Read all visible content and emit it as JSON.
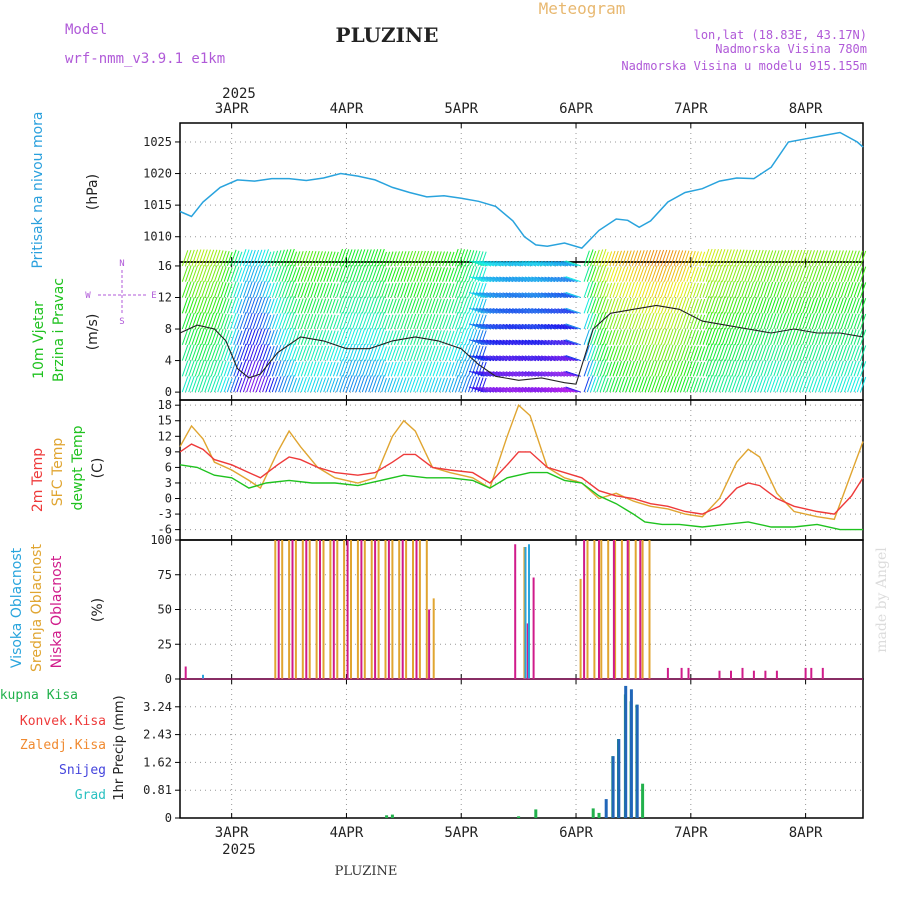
{
  "header": {
    "model_label": "Model",
    "model_name": "wrf-nmm_v3.9.1 e1km",
    "station": "PLUZINE",
    "title": "Meteogram",
    "lonlat": "lon,lat (18.83E, 43.17N)",
    "elevation": "Nadmorska Visina 780m",
    "model_elevation": "Nadmorska Visina u modelu 915.155m",
    "footer_station": "PLUZINE",
    "watermark": "made by Angel"
  },
  "colors": {
    "pressure": "#29a3dd",
    "t2m": "#ee3a3a",
    "sfc": "#e0a531",
    "dewpt": "#1fc21f",
    "high_cloud": "#2aa5dd",
    "mid_cloud": "#e0a531",
    "low_cloud": "#d01b8a",
    "precip_total": "#22b14c",
    "precip_conv": "#ee3a3a",
    "precip_snow": "#4444dd",
    "precip_grad": "#2ac1c1",
    "labels": "#2aa0dd",
    "model_text": "#b05ad8"
  },
  "time_axis": {
    "year": "2025",
    "days": [
      "3APR",
      "4APR",
      "5APR",
      "6APR",
      "7APR",
      "8APR"
    ],
    "start_day": 2.55,
    "end_day": 8.5
  },
  "panels": {
    "pressure": {
      "label": "Pritisak na nivou mora",
      "unit": "(hPa)"
    },
    "wind": {
      "label1": "10m Vjetar",
      "label2": "Brzina i Pravac",
      "unit": "(m/s)",
      "compass_top": "N",
      "compass_left": "W",
      "compass_right": "E",
      "compass_bottom": "S"
    },
    "temp": {
      "label1": "2m Temp",
      "label2": "SFC Temp",
      "label3": "dewpt Temp",
      "unit": "(C)"
    },
    "cloud": {
      "label1": "Visoka Oblacnost",
      "label2": "Srednja Oblacnost",
      "label3": "Niska Oblacnost",
      "unit": "(%)"
    },
    "precip": {
      "unit_label": "1hr Precip (mm)",
      "legend": [
        "Ukupna Kisa",
        "Konvek.Kisa",
        "Zaledj.Kisa",
        "Snijeg",
        "Grad"
      ]
    }
  },
  "chart_data": [
    {
      "type": "line",
      "title": "Pritisak na nivou mora",
      "ylabel": "(hPa)",
      "ylim": [
        1006,
        1028
      ],
      "yticks": [
        1010,
        1015,
        1020,
        1025
      ],
      "series": [
        {
          "name": "Pritisak na nivou mora",
          "x": [
            2.55,
            2.65,
            2.75,
            2.9,
            3.05,
            3.2,
            3.35,
            3.5,
            3.65,
            3.8,
            3.95,
            4.1,
            4.25,
            4.4,
            4.55,
            4.7,
            4.85,
            5.0,
            5.15,
            5.3,
            5.45,
            5.55,
            5.65,
            5.75,
            5.9,
            6.05,
            6.2,
            6.35,
            6.45,
            6.55,
            6.65,
            6.8,
            6.95,
            7.1,
            7.25,
            7.4,
            7.55,
            7.7,
            7.85,
            8.0,
            8.15,
            8.3,
            8.45,
            8.5
          ],
          "y": [
            1014.0,
            1013.2,
            1015.5,
            1017.8,
            1019.0,
            1018.8,
            1019.2,
            1019.2,
            1018.9,
            1019.3,
            1020.0,
            1019.6,
            1019.0,
            1017.8,
            1017.0,
            1016.3,
            1016.5,
            1016.1,
            1015.6,
            1014.8,
            1012.5,
            1010.0,
            1008.7,
            1008.5,
            1009.0,
            1008.2,
            1011.0,
            1012.8,
            1012.6,
            1011.5,
            1012.5,
            1015.5,
            1017.0,
            1017.6,
            1018.8,
            1019.3,
            1019.2,
            1021.0,
            1025.0,
            1025.5,
            1026.0,
            1026.5,
            1025.0,
            1024.2
          ]
        }
      ]
    },
    {
      "type": "line",
      "title": "10m Vjetar Brzina i Pravac",
      "ylabel": "(m/s)",
      "ylim": [
        -1,
        16.5
      ],
      "yticks": [
        0,
        4,
        8,
        12,
        16
      ],
      "series": [
        {
          "name": "10m Vjetar",
          "x": [
            2.55,
            2.7,
            2.85,
            2.95,
            3.05,
            3.15,
            3.25,
            3.4,
            3.6,
            3.8,
            4.0,
            4.2,
            4.4,
            4.6,
            4.8,
            5.0,
            5.15,
            5.3,
            5.5,
            5.7,
            5.9,
            6.0,
            6.15,
            6.3,
            6.5,
            6.7,
            6.9,
            7.1,
            7.3,
            7.5,
            7.7,
            7.9,
            8.1,
            8.3,
            8.5
          ],
          "y": [
            7.5,
            8.5,
            8.0,
            6.5,
            3.0,
            1.8,
            2.3,
            5.0,
            7.0,
            6.5,
            5.5,
            5.5,
            6.5,
            7.0,
            6.5,
            5.5,
            3.5,
            2.0,
            1.5,
            1.8,
            1.2,
            1.0,
            8.0,
            10.0,
            10.5,
            11.0,
            10.5,
            9.0,
            8.5,
            8.0,
            7.5,
            8.0,
            7.5,
            7.5,
            7.0
          ]
        }
      ]
    },
    {
      "type": "line",
      "title": "2m Temp / SFC Temp / dewpt Temp",
      "ylabel": "(C)",
      "ylim": [
        -8,
        19
      ],
      "yticks": [
        -6,
        -3,
        0,
        3,
        6,
        9,
        12,
        15,
        18
      ],
      "series": [
        {
          "name": "2m Temp",
          "x": [
            2.55,
            2.65,
            2.75,
            2.85,
            3.0,
            3.15,
            3.25,
            3.4,
            3.5,
            3.6,
            3.75,
            3.9,
            4.1,
            4.25,
            4.4,
            4.5,
            4.6,
            4.75,
            4.9,
            5.1,
            5.25,
            5.4,
            5.5,
            5.6,
            5.75,
            5.9,
            6.05,
            6.2,
            6.35,
            6.5,
            6.65,
            6.8,
            6.95,
            7.1,
            7.25,
            7.4,
            7.5,
            7.6,
            7.75,
            7.9,
            8.1,
            8.25,
            8.4,
            8.5
          ],
          "y": [
            9.0,
            10.5,
            9.5,
            7.5,
            6.5,
            5.0,
            4.0,
            6.5,
            8.0,
            7.5,
            6.0,
            5.0,
            4.5,
            5.0,
            7.0,
            8.5,
            8.5,
            6.0,
            5.5,
            5.0,
            3.0,
            6.5,
            9.0,
            9.0,
            6.0,
            5.0,
            4.0,
            1.5,
            0.5,
            0.0,
            -1.0,
            -1.5,
            -2.5,
            -3.0,
            -1.5,
            2.0,
            3.0,
            2.5,
            0.0,
            -1.5,
            -2.5,
            -3.0,
            0.5,
            4.0
          ]
        },
        {
          "name": "SFC Temp",
          "x": [
            2.55,
            2.65,
            2.75,
            2.85,
            3.0,
            3.15,
            3.25,
            3.4,
            3.5,
            3.6,
            3.75,
            3.9,
            4.1,
            4.25,
            4.4,
            4.5,
            4.6,
            4.75,
            4.9,
            5.1,
            5.25,
            5.4,
            5.5,
            5.6,
            5.75,
            5.9,
            6.05,
            6.2,
            6.35,
            6.5,
            6.65,
            6.8,
            6.95,
            7.1,
            7.25,
            7.4,
            7.5,
            7.6,
            7.75,
            7.9,
            8.1,
            8.25,
            8.4,
            8.5
          ],
          "y": [
            10.0,
            14.0,
            11.5,
            7.0,
            5.5,
            3.5,
            2.0,
            9.0,
            13.0,
            10.0,
            6.0,
            4.0,
            3.0,
            4.0,
            12.0,
            15.0,
            13.0,
            6.0,
            5.0,
            4.0,
            2.0,
            12.0,
            18.0,
            16.0,
            6.0,
            4.0,
            3.0,
            0.0,
            1.0,
            -0.5,
            -1.5,
            -2.0,
            -3.0,
            -3.5,
            0.0,
            7.0,
            9.5,
            8.0,
            1.0,
            -2.5,
            -3.5,
            -4.0,
            5.0,
            11.0
          ]
        },
        {
          "name": "dewpt Temp",
          "x": [
            2.55,
            2.7,
            2.85,
            3.0,
            3.15,
            3.3,
            3.5,
            3.7,
            3.9,
            4.1,
            4.3,
            4.5,
            4.7,
            4.9,
            5.1,
            5.25,
            5.4,
            5.5,
            5.6,
            5.75,
            5.9,
            6.05,
            6.2,
            6.35,
            6.5,
            6.6,
            6.75,
            6.9,
            7.1,
            7.3,
            7.5,
            7.7,
            7.9,
            8.1,
            8.3,
            8.5
          ],
          "y": [
            6.5,
            6.0,
            4.5,
            4.0,
            2.0,
            3.0,
            3.5,
            3.0,
            3.0,
            2.5,
            3.5,
            4.5,
            4.0,
            4.0,
            3.5,
            2.0,
            4.0,
            4.5,
            5.0,
            5.0,
            3.5,
            3.0,
            0.5,
            -1.0,
            -3.0,
            -4.5,
            -5.0,
            -5.0,
            -5.5,
            -5.0,
            -4.5,
            -5.5,
            -5.5,
            -5.0,
            -6.0,
            -6.0
          ]
        }
      ]
    },
    {
      "type": "bar",
      "title": "Visoka / Srednja / Niska Oblacnost",
      "ylabel": "(%)",
      "ylim": [
        0,
        100
      ],
      "yticks": [
        0,
        25,
        50,
        75,
        100
      ],
      "series": [
        {
          "name": "Srednja Oblacnost",
          "x": [
            3.38,
            3.44,
            3.5,
            3.56,
            3.62,
            3.68,
            3.74,
            3.8,
            3.86,
            3.92,
            3.98,
            4.04,
            4.1,
            4.16,
            4.22,
            4.28,
            4.34,
            4.4,
            4.46,
            4.52,
            4.58,
            4.64,
            4.7,
            4.76,
            5.55,
            6.04,
            6.1,
            6.16,
            6.22,
            6.28,
            6.34,
            6.4,
            6.46,
            6.52,
            6.58,
            6.64
          ],
          "y": [
            100,
            100,
            100,
            100,
            100,
            100,
            100,
            100,
            100,
            100,
            100,
            100,
            100,
            100,
            100,
            100,
            100,
            100,
            100,
            100,
            100,
            100,
            100,
            58,
            95,
            72,
            100,
            100,
            100,
            100,
            100,
            100,
            100,
            100,
            100,
            100
          ]
        },
        {
          "name": "Niska Oblacnost",
          "x": [
            2.6,
            3.41,
            3.53,
            3.65,
            3.77,
            3.89,
            4.01,
            4.13,
            4.25,
            4.37,
            4.49,
            4.61,
            4.72,
            5.47,
            5.58,
            5.63,
            6.07,
            6.2,
            6.33,
            6.45,
            6.56,
            6.8,
            6.92,
            6.98,
            7.25,
            7.35,
            7.45,
            7.55,
            7.65,
            7.75,
            8.0,
            8.05,
            8.15
          ],
          "y": [
            9,
            100,
            100,
            100,
            100,
            100,
            100,
            100,
            100,
            100,
            100,
            100,
            50,
            97,
            40,
            73,
            100,
            100,
            100,
            100,
            100,
            8,
            8,
            8,
            6,
            6,
            8,
            6,
            6,
            6,
            8,
            8,
            8
          ]
        },
        {
          "name": "Visoka Oblacnost",
          "x": [
            2.75,
            5.56,
            5.59
          ],
          "y": [
            3,
            95,
            97
          ]
        }
      ]
    },
    {
      "type": "bar",
      "title": "1hr Precip",
      "ylabel": "1hr Precip (mm)",
      "ylim": [
        0,
        4.05
      ],
      "yticks": [
        0,
        0.81,
        1.62,
        2.43,
        3.24
      ],
      "series": [
        {
          "name": "Ukupna Kisa",
          "x": [
            4.35,
            4.4,
            5.5,
            5.65,
            6.15,
            6.2,
            6.32,
            6.37,
            6.43,
            6.48,
            6.53,
            6.58
          ],
          "y": [
            0.08,
            0.1,
            0.05,
            0.25,
            0.28,
            0.15,
            1.8,
            2.3,
            3.6,
            3.4,
            3.3,
            1.0
          ]
        },
        {
          "name": "Snijeg",
          "x": [
            6.28,
            6.34,
            6.39,
            6.45,
            6.5,
            6.55
          ],
          "y": [
            0.55,
            1.8,
            2.3,
            3.85,
            3.75,
            3.3
          ]
        }
      ]
    }
  ]
}
